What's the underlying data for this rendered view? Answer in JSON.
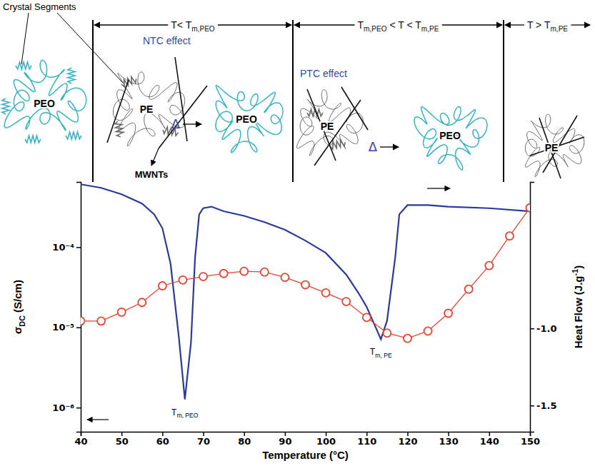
{
  "chart_data": {
    "type": "line",
    "xlabel": "Temperature (°C)",
    "ylabel": {
      "text": "σ",
      "sub": "DC",
      "after": " (S/cm)"
    },
    "y2label": {
      "text": "Heat Flow (J.g",
      "sup": "-1",
      "after": ")"
    },
    "xlim": [
      40,
      150
    ],
    "xticks": [
      40,
      50,
      60,
      70,
      80,
      90,
      100,
      110,
      120,
      130,
      140,
      150
    ],
    "log": "y",
    "ylim": [
      5e-07,
      0.00065
    ],
    "yticks": [
      {
        "value": 1e-06,
        "label": "10⁻⁶"
      },
      {
        "value": 1e-05,
        "label": "10⁻⁵"
      },
      {
        "value": 0.0001,
        "label": "10⁻⁴"
      }
    ],
    "y2lim": [
      -1.67,
      -0.05
    ],
    "y2ticks": [
      {
        "value": -1.5,
        "label": "-1.5"
      },
      {
        "value": -1,
        "label": "-1.0"
      }
    ],
    "series": [
      {
        "type": "line",
        "color": "#2a3a9c",
        "axis": "y2",
        "x": [
          40,
          45,
          50,
          55,
          58,
          60,
          62,
          64,
          65.5,
          67,
          68,
          69,
          70,
          72,
          75,
          80,
          85,
          90,
          95,
          100,
          105,
          108,
          110,
          112,
          113.5,
          115,
          117,
          118,
          120,
          125,
          130,
          140,
          150
        ],
        "values": [
          -0.065,
          -0.088,
          -0.13,
          -0.19,
          -0.26,
          -0.35,
          -0.58,
          -1.05,
          -1.46,
          -1.09,
          -0.54,
          -0.26,
          -0.22,
          -0.21,
          -0.24,
          -0.27,
          -0.31,
          -0.36,
          -0.43,
          -0.51,
          -0.65,
          -0.77,
          -0.86,
          -0.98,
          -1.07,
          -0.95,
          -0.54,
          -0.26,
          -0.2,
          -0.2,
          -0.21,
          -0.22,
          -0.24
        ]
      },
      {
        "type": "line",
        "color": "#e8432e",
        "marker": "circle",
        "x": [
          40,
          45,
          50,
          55,
          60,
          65,
          70,
          75,
          80,
          85,
          90,
          95,
          100,
          105,
          110,
          115,
          120,
          125,
          130,
          135,
          140,
          145,
          150
        ],
        "values": [
          1.2e-05,
          1.2e-05,
          1.55e-05,
          2.05e-05,
          3.3e-05,
          3.9e-05,
          4.3e-05,
          4.7e-05,
          5e-05,
          4.9e-05,
          4.2e-05,
          3.4e-05,
          2.7e-05,
          2.1e-05,
          1.33e-05,
          8.5e-06,
          7.3e-06,
          9e-06,
          1.5e-05,
          3e-05,
          5.9e-05,
          0.000138,
          0.00031
        ]
      }
    ],
    "annotations": [
      {
        "text": "T",
        "sub": "m, PEO"
      },
      {
        "text": "T",
        "sub": "m, PE"
      }
    ]
  },
  "schematic": {
    "callout": "Crystal Segments",
    "regions": [
      {
        "label": [
          {
            "text": "T< T",
            "sub": "m,PEO"
          }
        ]
      },
      {
        "label": [
          {
            "text": "T",
            "sub": "m,PEO"
          },
          {
            "text": " < T < T",
            "sub": "m,PE"
          }
        ]
      },
      {
        "label": [
          {
            "text": "T > T",
            "sub": "m,PE"
          }
        ]
      }
    ],
    "effects": [
      "NTC effect",
      "PTC effect"
    ],
    "heating": [
      "Δ",
      "Δ"
    ],
    "polymers": [
      "PEO",
      "PE",
      "PEO",
      "PE",
      "PEO",
      "PE"
    ],
    "filler": "MWNTs"
  }
}
